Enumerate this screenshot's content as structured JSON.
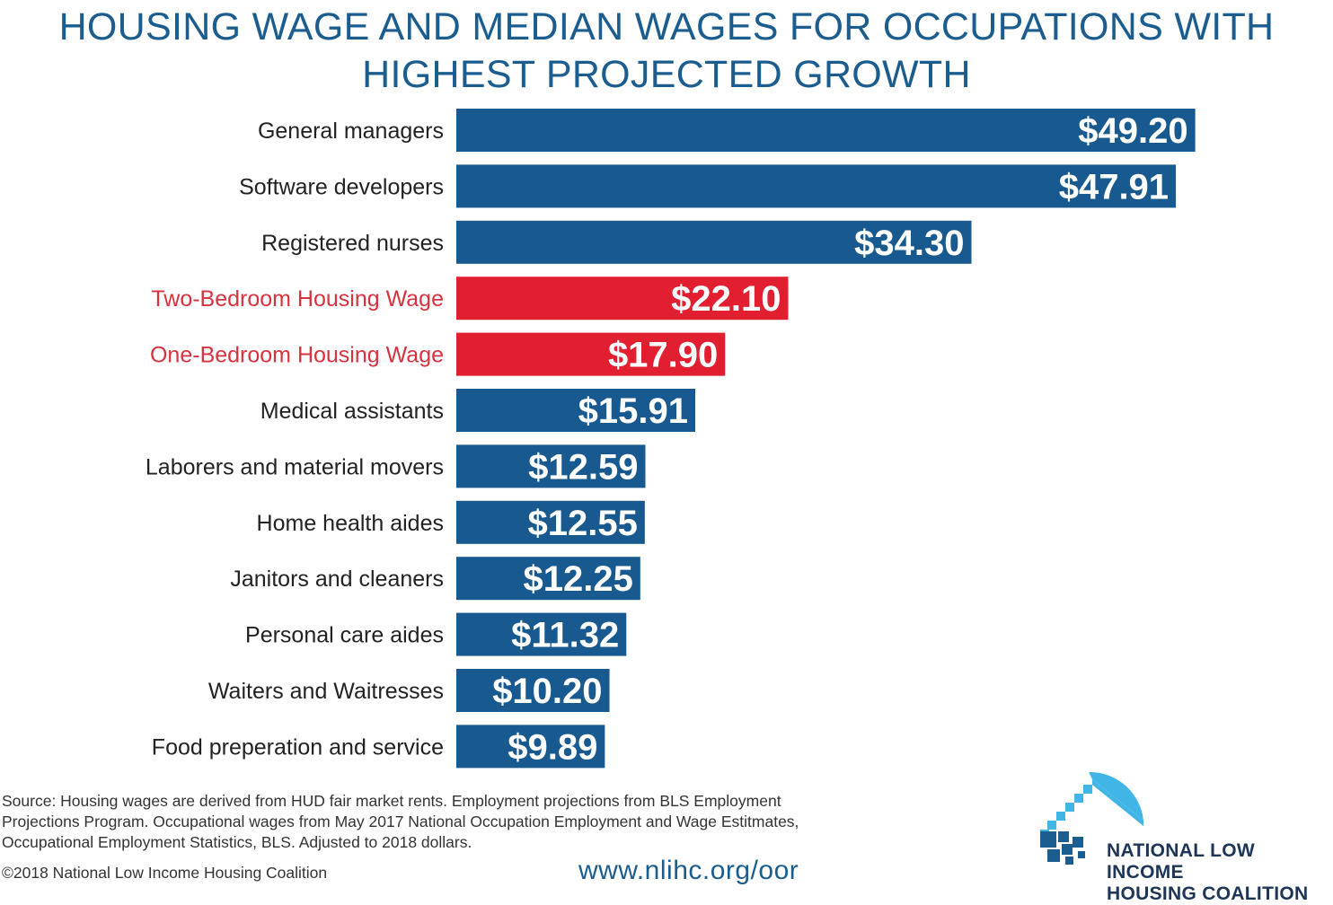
{
  "title_lines": [
    "HOUSING WAGE AND MEDIAN WAGES FOR OCCUPATIONS WITH",
    "HIGHEST PROJECTED GROWTH"
  ],
  "chart_data": {
    "type": "bar",
    "orientation": "horizontal",
    "title": "HOUSING WAGE AND MEDIAN WAGES FOR OCCUPATIONS WITH HIGHEST PROJECTED GROWTH",
    "xlabel": "",
    "ylabel": "",
    "grid": false,
    "xlim": [
      0,
      50
    ],
    "categories": [
      "General managers",
      "Software developers",
      "Registered nurses",
      "Two-Bedroom Housing Wage",
      "One-Bedroom Housing Wage",
      "Medical assistants",
      "Laborers and material movers",
      "Home health aides",
      "Janitors and cleaners",
      "Personal care aides",
      "Waiters and Waitresses",
      "Food preperation and service"
    ],
    "values": [
      49.2,
      47.91,
      34.3,
      22.1,
      17.9,
      15.91,
      12.59,
      12.55,
      12.25,
      11.32,
      10.2,
      9.89
    ],
    "value_labels": [
      "$49.20",
      "$47.91",
      "$34.30",
      "$22.10",
      "$17.90",
      "$15.91",
      "$12.59",
      "$12.55",
      "$12.25",
      "$11.32",
      "$10.20",
      "$9.89"
    ],
    "highlight": [
      false,
      false,
      false,
      true,
      true,
      false,
      false,
      false,
      false,
      false,
      false,
      false
    ],
    "colors": {
      "bar": "#185a8f",
      "highlight_bar": "#e11f31",
      "label": "#222222",
      "highlight_label": "#d8323f"
    }
  },
  "footer": {
    "source_lines": [
      "Source: Housing wages are derived from HUD fair market rents. Employment projections from BLS Employment",
      "Projections Program. Occupational wages from May 2017 National Occupation Employment and Wage Estitmates,",
      "Occupational Employment Statistics, BLS. Adjusted to 2018 dollars."
    ],
    "copyright": "©2018 National Low Income Housing Coalition",
    "url": "www.nlihc.org/oor"
  },
  "logo": {
    "icon": "house-stairs-logo-icon",
    "lines": [
      "NATIONAL LOW INCOME",
      "HOUSING COALITION"
    ],
    "colors": {
      "dark": "#1b5d8e",
      "light": "#41b6e6"
    }
  }
}
